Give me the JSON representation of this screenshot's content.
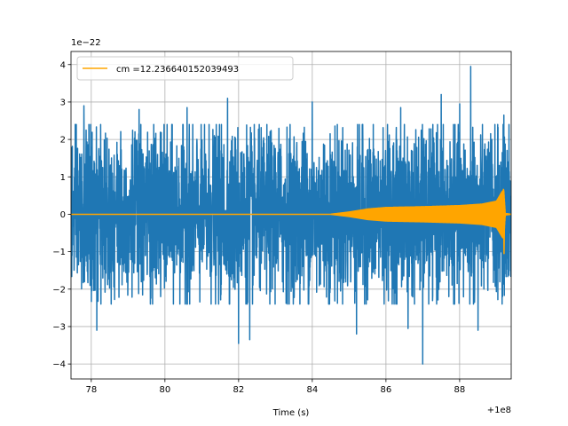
{
  "chart_data": {
    "type": "line",
    "title": "",
    "xlabel": "Time (s)",
    "ylabel": "",
    "x_offset_label": "+1e8",
    "y_scale_label": "1e−22",
    "xlim": [
      77.45,
      89.4
    ],
    "ylim": [
      -4.4,
      4.35
    ],
    "x_ticks": [
      78,
      80,
      82,
      84,
      86,
      88
    ],
    "y_ticks": [
      -4,
      -3,
      -2,
      -1,
      0,
      1,
      2,
      3,
      4
    ],
    "y_tick_labels": [
      "−4",
      "−3",
      "−2",
      "−1",
      "0",
      "1",
      "2",
      "3",
      "4"
    ],
    "grid": true,
    "legend_position": "top-left",
    "colors": {
      "strain": "#1f77b4",
      "template": "#ffa500",
      "grid": "#b0b0b0"
    },
    "series": [
      {
        "key": "strain",
        "kind": "noise",
        "x_range": [
          77.45,
          89.4
        ],
        "typical_amplitude": 2.0,
        "peaks": [
          {
            "x": 77.8,
            "y": 2.9
          },
          {
            "x": 78.15,
            "y": -3.1
          },
          {
            "x": 79.3,
            "y": 2.8
          },
          {
            "x": 80.6,
            "y": 2.85
          },
          {
            "x": 81.7,
            "y": 3.1
          },
          {
            "x": 82.0,
            "y": -3.45
          },
          {
            "x": 82.3,
            "y": -3.35
          },
          {
            "x": 84.0,
            "y": 3.0
          },
          {
            "x": 85.2,
            "y": -3.2
          },
          {
            "x": 86.4,
            "y": 2.85
          },
          {
            "x": 86.6,
            "y": -3.05
          },
          {
            "x": 87.0,
            "y": -4.0
          },
          {
            "x": 87.5,
            "y": 3.2
          },
          {
            "x": 88.0,
            "y": 2.95
          },
          {
            "x": 88.3,
            "y": 3.95
          },
          {
            "x": 88.5,
            "y": -3.1
          },
          {
            "x": 89.2,
            "y": 2.65
          }
        ]
      },
      {
        "key": "template",
        "name": "cm =12.236640152039493",
        "kind": "chirp",
        "envelope": [
          {
            "x": 77.45,
            "y": 0.0
          },
          {
            "x": 84.5,
            "y": 0.0
          },
          {
            "x": 85.0,
            "y": 0.06
          },
          {
            "x": 85.5,
            "y": 0.14
          },
          {
            "x": 86.0,
            "y": 0.18
          },
          {
            "x": 87.0,
            "y": 0.2
          },
          {
            "x": 88.0,
            "y": 0.23
          },
          {
            "x": 88.6,
            "y": 0.27
          },
          {
            "x": 89.0,
            "y": 0.35
          },
          {
            "x": 89.15,
            "y": 0.6
          },
          {
            "x": 89.2,
            "y": 0.65
          },
          {
            "x": 89.24,
            "y": 0.02
          },
          {
            "x": 89.4,
            "y": 0.0
          }
        ],
        "peak_max": 0.68,
        "peak_min": -1.05
      }
    ]
  }
}
